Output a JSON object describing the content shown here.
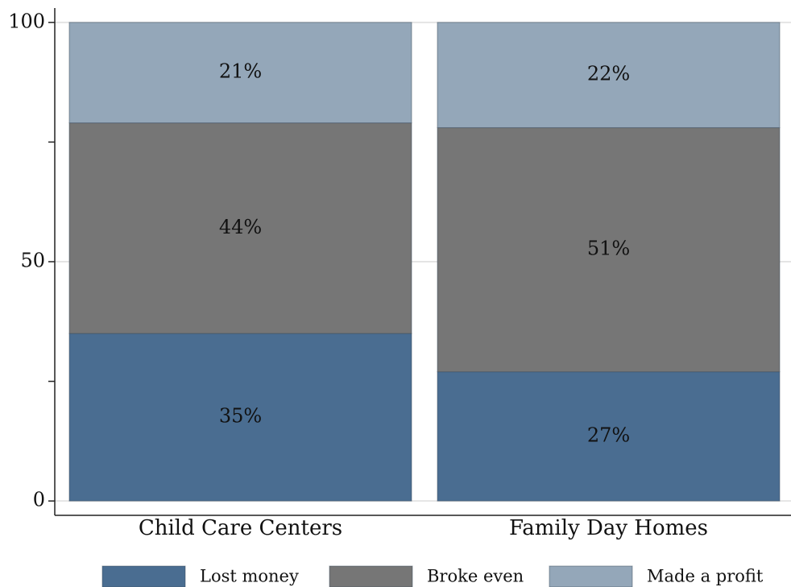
{
  "chart_data": {
    "type": "stacked_bar",
    "categories": [
      "Child Care Centers",
      "Family Day Homes"
    ],
    "series": [
      {
        "name": "Lost money",
        "color": "#4a6d91",
        "values": [
          35,
          27
        ],
        "value_labels": [
          "35%",
          "27%"
        ]
      },
      {
        "name": "Broke even",
        "color": "#767676",
        "values": [
          44,
          51
        ],
        "value_labels": [
          "44%",
          "51%"
        ]
      },
      {
        "name": "Made a profit",
        "color": "#94a7b9",
        "values": [
          21,
          22
        ],
        "value_labels": [
          "21%",
          "22%"
        ]
      }
    ],
    "ylim": [
      -3,
      103
    ],
    "yticks": [
      0,
      50,
      100
    ],
    "minor_yticks": [
      25,
      75
    ],
    "grid": true,
    "legend": "bottom"
  }
}
